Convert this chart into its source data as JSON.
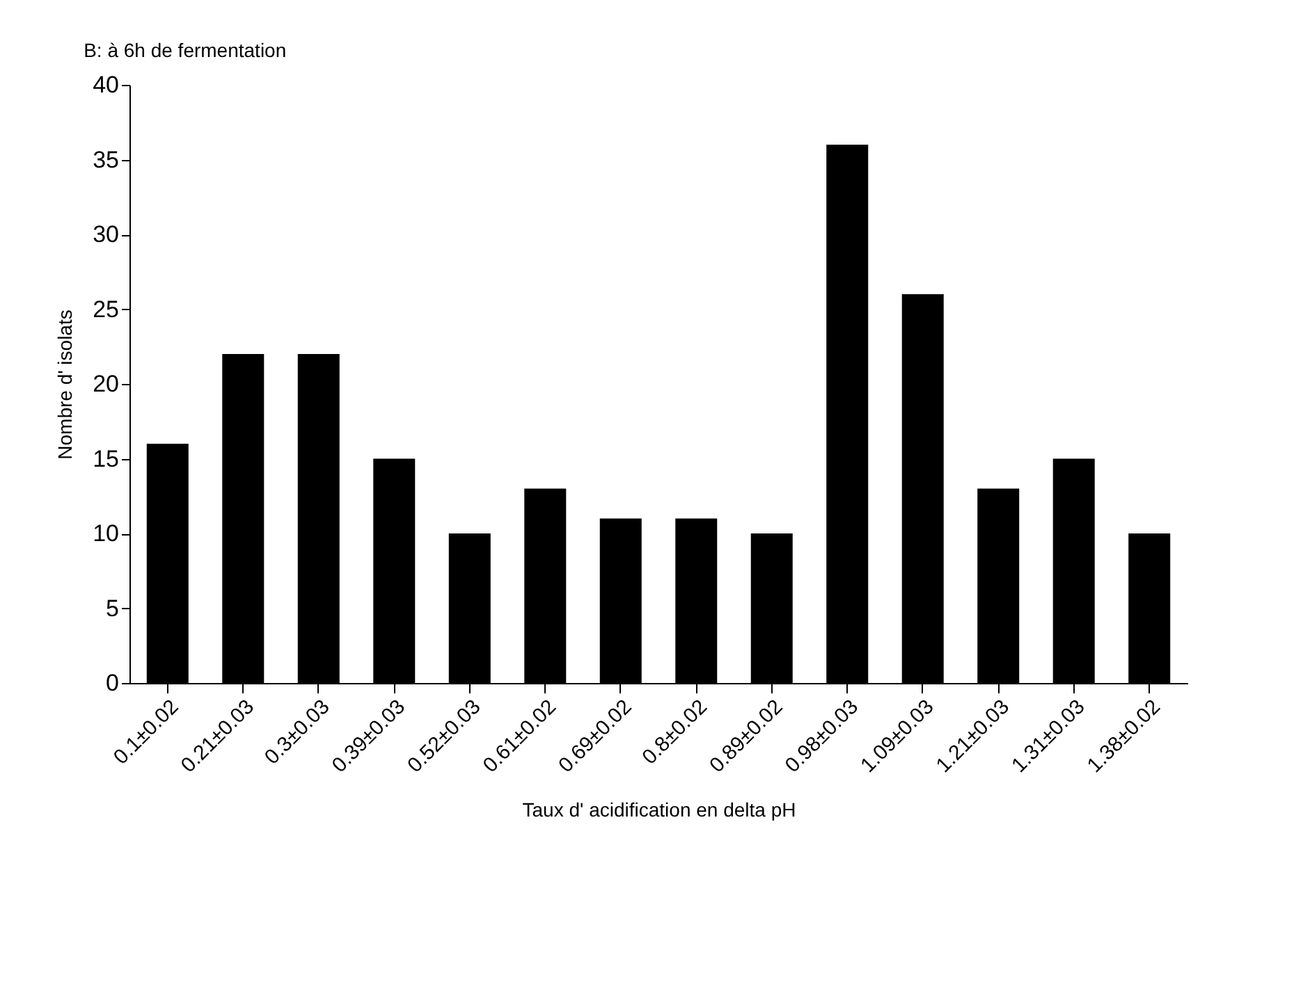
{
  "chart_data": {
    "type": "bar",
    "title": "B: à  6h de fermentation",
    "xlabel": "Taux d' acidification en delta pH",
    "ylabel": "Nombre d' isolats",
    "categories": [
      "0.1±0.02",
      "0.21±0.03",
      "0.3±0.03",
      "0.39±0.03",
      "0.52±0.03",
      "0.61±0.02",
      "0.69±0.02",
      "0.8±0.02",
      "0.89±0.02",
      "0.98±0.03",
      "1.09±0.03",
      "1.21±0.03",
      "1.31±0.03",
      "1.38±0.02"
    ],
    "values": [
      16,
      22,
      22,
      15,
      10,
      13,
      11,
      11,
      10,
      36,
      26,
      13,
      15,
      10
    ],
    "color": "#000000",
    "ylim": [
      0,
      40
    ],
    "yticks": [
      0,
      5,
      10,
      15,
      20,
      25,
      30,
      35,
      40
    ],
    "grid": false
  }
}
